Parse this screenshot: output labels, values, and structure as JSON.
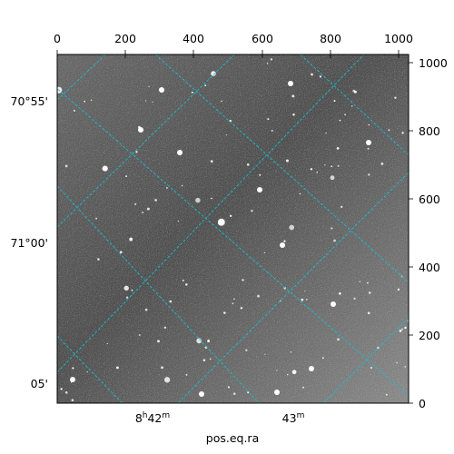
{
  "figure": {
    "top_axis": {
      "ticks": [
        "0",
        "200",
        "400",
        "600",
        "800",
        "1000"
      ]
    },
    "right_axis": {
      "ticks": [
        "0",
        "200",
        "400",
        "600",
        "800",
        "1000"
      ]
    },
    "left_axis": {
      "ticks": [
        "70°55'",
        "71°00'",
        "05'"
      ]
    },
    "bottom_axis": {
      "ticks": [
        {
          "main": "8",
          "sup": "h",
          "main2": "42",
          "sup2": "m"
        },
        {
          "main": "43",
          "sup": "m"
        }
      ],
      "label": "pos.eq.ra"
    },
    "grid_color": "#17becf",
    "image_colormap": "gray"
  }
}
